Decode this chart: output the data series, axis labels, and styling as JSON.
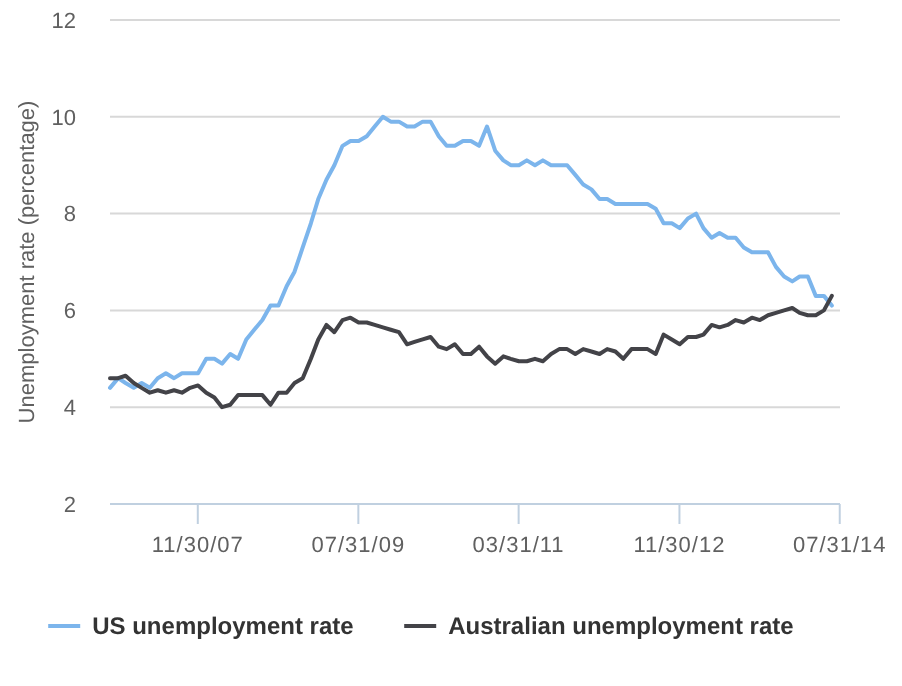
{
  "chart_data": {
    "type": "line",
    "ylabel": "Unemployment rate (percentage)",
    "x": [
      "2007-01",
      "2007-02",
      "2007-03",
      "2007-04",
      "2007-05",
      "2007-06",
      "2007-07",
      "2007-08",
      "2007-09",
      "2007-10",
      "2007-11",
      "2007-12",
      "2008-01",
      "2008-02",
      "2008-03",
      "2008-04",
      "2008-05",
      "2008-06",
      "2008-07",
      "2008-08",
      "2008-09",
      "2008-10",
      "2008-11",
      "2008-12",
      "2009-01",
      "2009-02",
      "2009-03",
      "2009-04",
      "2009-05",
      "2009-06",
      "2009-07",
      "2009-08",
      "2009-09",
      "2009-10",
      "2009-11",
      "2009-12",
      "2010-01",
      "2010-02",
      "2010-03",
      "2010-04",
      "2010-05",
      "2010-06",
      "2010-07",
      "2010-08",
      "2010-09",
      "2010-10",
      "2010-11",
      "2010-12",
      "2011-01",
      "2011-02",
      "2011-03",
      "2011-04",
      "2011-05",
      "2011-06",
      "2011-07",
      "2011-08",
      "2011-09",
      "2011-10",
      "2011-11",
      "2011-12",
      "2012-01",
      "2012-02",
      "2012-03",
      "2012-04",
      "2012-05",
      "2012-06",
      "2012-07",
      "2012-08",
      "2012-09",
      "2012-10",
      "2012-11",
      "2012-12",
      "2013-01",
      "2013-02",
      "2013-03",
      "2013-04",
      "2013-05",
      "2013-06",
      "2013-07",
      "2013-08",
      "2013-09",
      "2013-10",
      "2013-11",
      "2013-12",
      "2014-01",
      "2014-02",
      "2014-03",
      "2014-04",
      "2014-05",
      "2014-06",
      "2014-07"
    ],
    "series": [
      {
        "name": "US unemployment rate",
        "color": "#7cb5ec",
        "values": [
          4.4,
          4.6,
          4.5,
          4.4,
          4.5,
          4.4,
          4.6,
          4.7,
          4.6,
          4.7,
          4.7,
          4.7,
          5.0,
          5.0,
          4.9,
          5.1,
          5.0,
          5.4,
          5.6,
          5.8,
          6.1,
          6.1,
          6.5,
          6.8,
          7.3,
          7.8,
          8.3,
          8.7,
          9.0,
          9.4,
          9.5,
          9.5,
          9.6,
          9.8,
          10.0,
          9.9,
          9.9,
          9.8,
          9.8,
          9.9,
          9.9,
          9.6,
          9.4,
          9.4,
          9.5,
          9.5,
          9.4,
          9.8,
          9.3,
          9.1,
          9.0,
          9.0,
          9.1,
          9.0,
          9.1,
          9.0,
          9.0,
          9.0,
          8.8,
          8.6,
          8.5,
          8.3,
          8.3,
          8.2,
          8.2,
          8.2,
          8.2,
          8.2,
          8.1,
          7.8,
          7.8,
          7.7,
          7.9,
          8.0,
          7.7,
          7.5,
          7.6,
          7.5,
          7.5,
          7.3,
          7.2,
          7.2,
          7.2,
          6.9,
          6.7,
          6.6,
          6.7,
          6.7,
          6.3,
          6.3,
          6.1
        ]
      },
      {
        "name": "Australian unemployment rate",
        "color": "#434348",
        "values": [
          4.6,
          4.6,
          4.65,
          4.5,
          4.4,
          4.3,
          4.35,
          4.3,
          4.35,
          4.3,
          4.4,
          4.45,
          4.3,
          4.2,
          4.0,
          4.05,
          4.25,
          4.25,
          4.25,
          4.25,
          4.05,
          4.3,
          4.3,
          4.5,
          4.6,
          5.0,
          5.4,
          5.7,
          5.55,
          5.8,
          5.85,
          5.75,
          5.75,
          5.7,
          5.65,
          5.6,
          5.55,
          5.3,
          5.35,
          5.4,
          5.45,
          5.25,
          5.2,
          5.3,
          5.1,
          5.1,
          5.25,
          5.05,
          4.9,
          5.05,
          5.0,
          4.95,
          4.95,
          5.0,
          4.95,
          5.1,
          5.2,
          5.2,
          5.1,
          5.2,
          5.15,
          5.1,
          5.2,
          5.15,
          5.0,
          5.2,
          5.2,
          5.2,
          5.1,
          5.5,
          5.4,
          5.3,
          5.45,
          5.45,
          5.5,
          5.7,
          5.65,
          5.7,
          5.8,
          5.75,
          5.85,
          5.8,
          5.9,
          5.95,
          6.0,
          6.05,
          5.95,
          5.9,
          5.9,
          6.0,
          6.3
        ]
      }
    ],
    "xlim": [
      "2007-01-01",
      "2014-08-01"
    ],
    "xticks": [
      {
        "value": "2007-11-30",
        "label": "11/30/07"
      },
      {
        "value": "2009-07-31",
        "label": "07/31/09"
      },
      {
        "value": "2011-03-31",
        "label": "03/31/11"
      },
      {
        "value": "2012-11-30",
        "label": "11/30/12"
      },
      {
        "value": "2014-07-31",
        "label": "07/31/14"
      }
    ],
    "ylim": [
      2,
      12
    ],
    "yticks": [
      2,
      4,
      6,
      8,
      10,
      12
    ],
    "grid": "y",
    "legend": "bottom",
    "marker": "none",
    "line_style": "solid"
  }
}
